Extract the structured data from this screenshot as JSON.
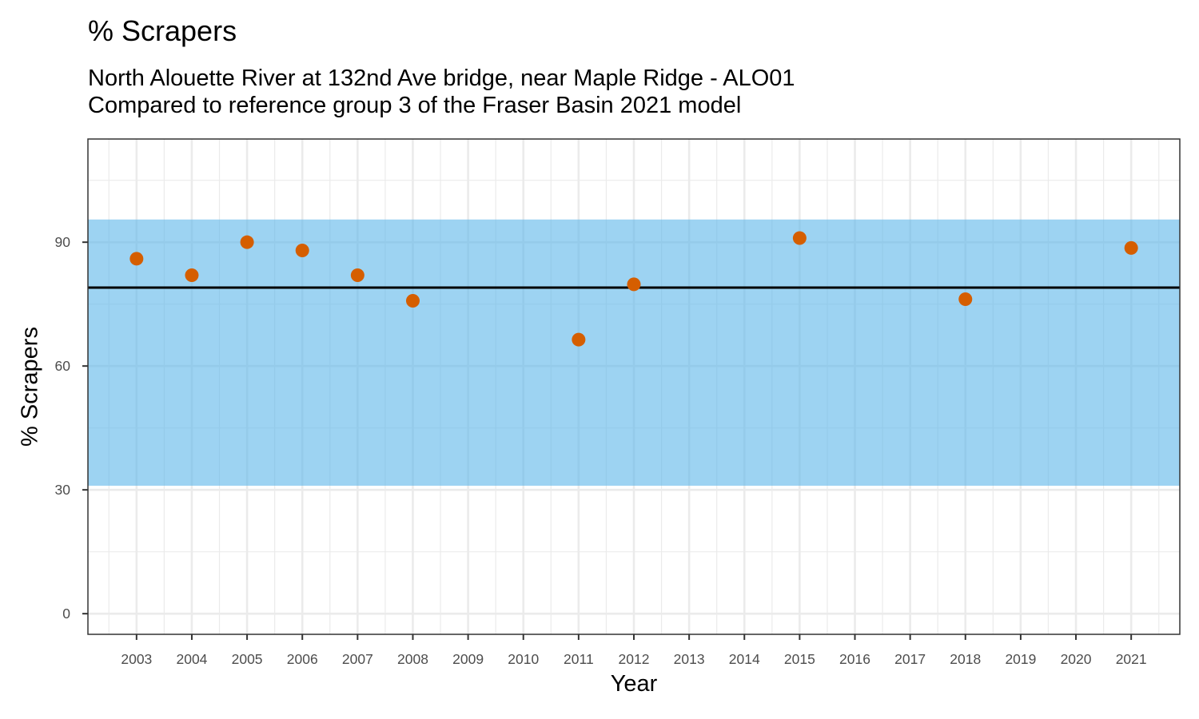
{
  "chart_data": {
    "type": "scatter",
    "title": "% Scrapers",
    "subtitle_lines": [
      "North Alouette River at 132nd Ave bridge, near Maple Ridge - ALO01",
      "Compared to reference group 3 of the Fraser Basin 2021 model"
    ],
    "xlabel": "Year",
    "ylabel": "% Scrapers",
    "x_ticks": [
      "2003",
      "2004",
      "2005",
      "2006",
      "2007",
      "2008",
      "2009",
      "2010",
      "2011",
      "2012",
      "2013",
      "2014",
      "2015",
      "2016",
      "2017",
      "2018",
      "2019",
      "2020",
      "2021"
    ],
    "y_ticks": [
      0,
      30,
      60,
      90
    ],
    "xlim": [
      2002.12,
      2021.88
    ],
    "ylim": [
      -5,
      115
    ],
    "reference_band": {
      "low": 31,
      "high": 95.5,
      "color": "#56B4E9"
    },
    "reference_line": {
      "value": 79,
      "color": "#000000"
    },
    "point_color": "#D55E00",
    "series": [
      {
        "name": "% Scrapers",
        "x": [
          2003,
          2004,
          2005,
          2006,
          2007,
          2008,
          2011,
          2012,
          2015,
          2018,
          2021
        ],
        "values": [
          86,
          82,
          90,
          88,
          82,
          75.8,
          66.4,
          79.8,
          91,
          76.2,
          88.6
        ]
      }
    ],
    "grid": true
  }
}
